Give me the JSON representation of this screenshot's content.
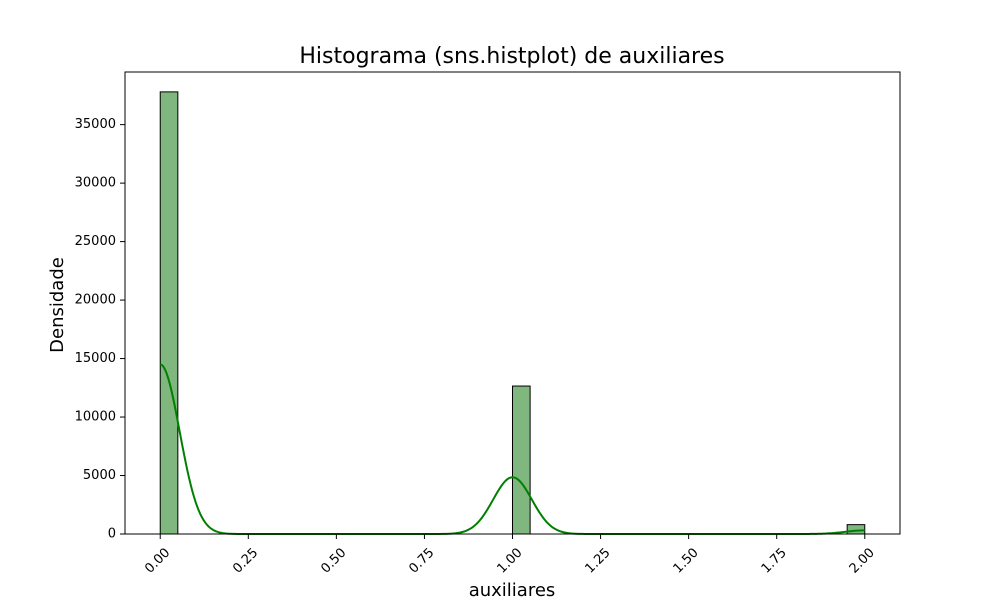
{
  "chart_data": {
    "type": "bar",
    "title": "Histograma (sns.histplot) de auxiliares",
    "xlabel": "auxiliares",
    "ylabel": "Densidade",
    "xlim": [
      -0.1,
      2.1
    ],
    "ylim": [
      0,
      39500
    ],
    "x_ticks": [
      "0.00",
      "0.25",
      "0.50",
      "0.75",
      "1.00",
      "1.25",
      "1.50",
      "1.75",
      "2.00"
    ],
    "x_tick_values": [
      0,
      0.25,
      0.5,
      0.75,
      1.0,
      1.25,
      1.5,
      1.75,
      2.0
    ],
    "y_ticks": [
      "0",
      "5000",
      "10000",
      "15000",
      "20000",
      "25000",
      "30000",
      "35000"
    ],
    "y_tick_values": [
      0,
      5000,
      10000,
      15000,
      20000,
      25000,
      30000,
      35000
    ],
    "bin_width": 0.05,
    "bins": [
      {
        "x_start": 0.0,
        "x_end": 0.05,
        "value": 37800
      },
      {
        "x_start": 1.0,
        "x_end": 1.05,
        "value": 12650
      },
      {
        "x_start": 1.95,
        "x_end": 2.0,
        "value": 800
      }
    ],
    "kde": {
      "color": "#008000",
      "components": [
        {
          "center": 0.0,
          "peak": 14500,
          "sigma": 0.055
        },
        {
          "center": 1.0,
          "peak": 4850,
          "sigma": 0.055
        },
        {
          "center": 2.0,
          "peak": 310,
          "sigma": 0.055
        }
      ]
    },
    "bar_color": "#7fb77e",
    "grid": false,
    "legend": "none"
  }
}
